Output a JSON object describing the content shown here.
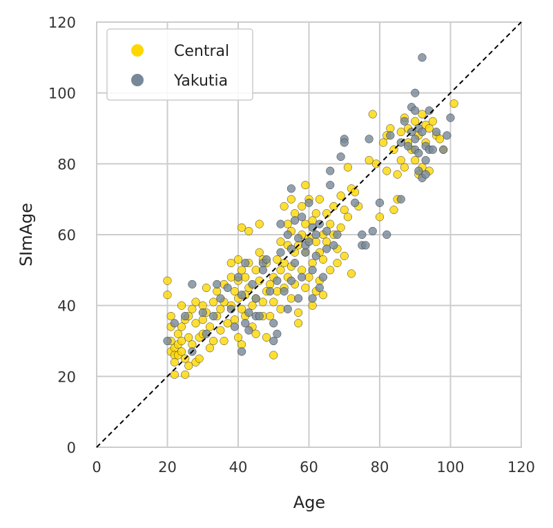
{
  "chart_data": {
    "type": "scatter",
    "xlabel": "Age",
    "ylabel": "SImAge",
    "xlim": [
      0,
      120
    ],
    "ylim": [
      0,
      120
    ],
    "xticks": [
      "0",
      "20",
      "40",
      "60",
      "80",
      "100",
      "120"
    ],
    "yticks": [
      "0",
      "20",
      "40",
      "60",
      "80",
      "100",
      "120"
    ],
    "grid": true,
    "legend_position": "top-left",
    "reference_line": {
      "style": "dashed",
      "color": "#000000",
      "from": [
        0,
        0
      ],
      "to": [
        120,
        120
      ]
    },
    "series": [
      {
        "name": "Central",
        "color": "#FFD700",
        "points": [
          [
            20,
            47
          ],
          [
            20,
            43
          ],
          [
            21,
            37
          ],
          [
            21,
            34
          ],
          [
            21,
            30
          ],
          [
            21,
            27
          ],
          [
            22,
            28
          ],
          [
            22,
            26
          ],
          [
            22,
            24
          ],
          [
            22,
            20.5
          ],
          [
            23,
            29
          ],
          [
            23,
            32
          ],
          [
            23,
            26
          ],
          [
            24,
            40
          ],
          [
            24,
            34
          ],
          [
            24,
            30
          ],
          [
            24,
            27
          ],
          [
            25,
            25
          ],
          [
            25,
            36
          ],
          [
            25,
            20.5
          ],
          [
            26,
            37
          ],
          [
            26,
            31
          ],
          [
            26,
            23
          ],
          [
            27,
            39
          ],
          [
            27,
            29
          ],
          [
            28,
            41
          ],
          [
            28,
            35
          ],
          [
            28,
            24
          ],
          [
            29,
            31
          ],
          [
            29,
            25
          ],
          [
            30,
            40
          ],
          [
            30,
            32
          ],
          [
            30,
            36
          ],
          [
            31,
            45
          ],
          [
            31,
            38
          ],
          [
            32,
            34
          ],
          [
            32,
            28
          ],
          [
            33,
            41
          ],
          [
            33,
            30
          ],
          [
            34,
            44
          ],
          [
            34,
            37
          ],
          [
            35,
            33
          ],
          [
            35,
            39
          ],
          [
            36,
            46
          ],
          [
            36,
            41
          ],
          [
            36,
            30
          ],
          [
            37,
            35
          ],
          [
            38,
            52
          ],
          [
            38,
            40
          ],
          [
            38,
            48
          ],
          [
            39,
            36
          ],
          [
            39,
            44
          ],
          [
            40,
            53
          ],
          [
            40,
            47
          ],
          [
            40,
            42
          ],
          [
            40,
            31
          ],
          [
            41,
            62
          ],
          [
            41,
            50
          ],
          [
            41,
            39
          ],
          [
            41,
            29
          ],
          [
            42,
            48
          ],
          [
            42,
            43
          ],
          [
            42,
            37
          ],
          [
            43,
            61
          ],
          [
            43,
            52
          ],
          [
            43,
            45
          ],
          [
            44,
            40
          ],
          [
            44,
            34
          ],
          [
            45,
            50
          ],
          [
            45,
            42
          ],
          [
            45,
            32
          ],
          [
            46,
            63
          ],
          [
            46,
            55
          ],
          [
            46,
            47
          ],
          [
            47,
            53
          ],
          [
            47,
            41
          ],
          [
            47,
            37
          ],
          [
            48,
            52
          ],
          [
            48,
            44
          ],
          [
            48,
            31
          ],
          [
            49,
            46
          ],
          [
            49,
            37
          ],
          [
            50,
            26
          ],
          [
            50,
            41
          ],
          [
            50,
            48
          ],
          [
            51,
            53
          ],
          [
            51,
            44
          ],
          [
            52,
            58
          ],
          [
            52,
            50
          ],
          [
            52,
            39
          ],
          [
            53,
            68
          ],
          [
            53,
            52
          ],
          [
            53,
            45
          ],
          [
            54,
            63
          ],
          [
            54,
            57
          ],
          [
            54,
            48
          ],
          [
            55,
            70
          ],
          [
            55,
            61
          ],
          [
            55,
            51
          ],
          [
            55,
            42
          ],
          [
            56,
            66
          ],
          [
            56,
            55
          ],
          [
            56,
            46
          ],
          [
            57,
            57
          ],
          [
            57,
            38
          ],
          [
            57,
            35
          ],
          [
            58,
            68
          ],
          [
            58,
            60
          ],
          [
            58,
            50
          ],
          [
            59,
            74
          ],
          [
            59,
            63
          ],
          [
            59,
            55
          ],
          [
            59,
            45
          ],
          [
            60,
            70
          ],
          [
            60,
            59
          ],
          [
            60,
            48
          ],
          [
            61,
            64
          ],
          [
            61,
            52
          ],
          [
            61,
            40
          ],
          [
            62,
            66
          ],
          [
            62,
            58
          ],
          [
            62,
            44
          ],
          [
            63,
            70
          ],
          [
            63,
            55
          ],
          [
            63,
            47
          ],
          [
            64,
            60
          ],
          [
            64,
            53
          ],
          [
            64,
            43
          ],
          [
            65,
            66
          ],
          [
            65,
            58
          ],
          [
            66,
            63
          ],
          [
            66,
            50
          ],
          [
            67,
            68
          ],
          [
            67,
            60
          ],
          [
            68,
            56
          ],
          [
            68,
            52
          ],
          [
            69,
            71
          ],
          [
            69,
            62
          ],
          [
            70,
            67
          ],
          [
            70,
            54
          ],
          [
            71,
            79
          ],
          [
            71,
            65
          ],
          [
            72,
            73
          ],
          [
            72,
            49
          ],
          [
            73,
            72
          ],
          [
            74,
            68
          ],
          [
            77,
            81
          ],
          [
            78,
            94
          ],
          [
            79,
            80
          ],
          [
            80,
            65
          ],
          [
            81,
            86
          ],
          [
            82,
            78
          ],
          [
            82,
            88
          ],
          [
            83,
            90
          ],
          [
            84,
            67
          ],
          [
            84,
            84
          ],
          [
            85,
            77
          ],
          [
            85,
            70
          ],
          [
            86,
            89
          ],
          [
            86,
            81
          ],
          [
            87,
            93
          ],
          [
            87,
            79
          ],
          [
            88,
            86
          ],
          [
            88,
            90
          ],
          [
            89,
            84
          ],
          [
            90,
            92
          ],
          [
            90,
            81
          ],
          [
            91,
            88
          ],
          [
            91,
            77
          ],
          [
            92,
            94
          ],
          [
            92,
            79
          ],
          [
            93,
            86
          ],
          [
            93,
            91
          ],
          [
            94,
            90
          ],
          [
            94,
            78
          ],
          [
            95,
            92
          ],
          [
            96,
            88
          ],
          [
            97,
            87
          ],
          [
            98,
            84
          ],
          [
            101,
            97
          ]
        ]
      },
      {
        "name": "Yakutia",
        "color": "#778899",
        "points": [
          [
            20,
            30
          ],
          [
            22,
            35
          ],
          [
            25,
            37
          ],
          [
            27,
            46
          ],
          [
            27,
            27
          ],
          [
            30,
            38
          ],
          [
            31,
            32
          ],
          [
            33,
            37
          ],
          [
            34,
            46
          ],
          [
            35,
            42
          ],
          [
            37,
            45
          ],
          [
            38,
            39
          ],
          [
            39,
            34
          ],
          [
            40,
            48
          ],
          [
            41,
            27
          ],
          [
            41,
            43
          ],
          [
            42,
            35
          ],
          [
            42,
            52
          ],
          [
            43,
            38
          ],
          [
            43,
            33
          ],
          [
            44,
            46
          ],
          [
            45,
            37
          ],
          [
            45,
            42
          ],
          [
            46,
            37
          ],
          [
            47,
            50
          ],
          [
            47,
            52
          ],
          [
            48,
            53
          ],
          [
            49,
            44
          ],
          [
            50,
            30
          ],
          [
            50,
            35
          ],
          [
            51,
            32
          ],
          [
            51,
            47
          ],
          [
            52,
            55
          ],
          [
            52,
            63
          ],
          [
            53,
            44
          ],
          [
            54,
            39
          ],
          [
            54,
            60
          ],
          [
            55,
            73
          ],
          [
            55,
            56
          ],
          [
            55,
            47
          ],
          [
            56,
            52
          ],
          [
            56,
            64
          ],
          [
            57,
            42
          ],
          [
            57,
            59
          ],
          [
            58,
            65
          ],
          [
            58,
            48
          ],
          [
            59,
            55
          ],
          [
            59,
            57
          ],
          [
            60,
            69
          ],
          [
            60,
            58
          ],
          [
            61,
            50
          ],
          [
            61,
            62
          ],
          [
            61,
            42
          ],
          [
            62,
            54
          ],
          [
            62,
            60
          ],
          [
            63,
            63
          ],
          [
            63,
            45
          ],
          [
            64,
            48
          ],
          [
            65,
            56
          ],
          [
            65,
            61
          ],
          [
            66,
            78
          ],
          [
            66,
            74
          ],
          [
            67,
            57
          ],
          [
            68,
            60
          ],
          [
            69,
            82
          ],
          [
            70,
            87
          ],
          [
            70,
            86
          ],
          [
            73,
            69
          ],
          [
            75,
            60
          ],
          [
            75,
            57
          ],
          [
            76,
            57
          ],
          [
            77,
            87
          ],
          [
            78,
            61
          ],
          [
            80,
            69
          ],
          [
            82,
            60
          ],
          [
            83,
            88
          ],
          [
            86,
            86
          ],
          [
            86,
            70
          ],
          [
            87,
            92
          ],
          [
            88,
            85
          ],
          [
            89,
            96
          ],
          [
            89,
            89
          ],
          [
            90,
            100
          ],
          [
            90,
            95
          ],
          [
            90,
            87
          ],
          [
            90,
            84
          ],
          [
            91,
            90
          ],
          [
            91,
            83
          ],
          [
            91,
            78
          ],
          [
            92,
            110
          ],
          [
            92,
            89
          ],
          [
            92,
            76
          ],
          [
            93,
            85
          ],
          [
            93,
            81
          ],
          [
            93,
            77
          ],
          [
            94,
            95
          ],
          [
            94,
            84
          ],
          [
            95,
            84
          ],
          [
            96,
            89
          ],
          [
            98,
            84
          ],
          [
            99,
            88
          ],
          [
            100,
            93
          ]
        ]
      }
    ]
  },
  "legend": {
    "items": [
      {
        "label": "Central",
        "color": "#FFD700"
      },
      {
        "label": "Yakutia",
        "color": "#778899"
      }
    ]
  }
}
